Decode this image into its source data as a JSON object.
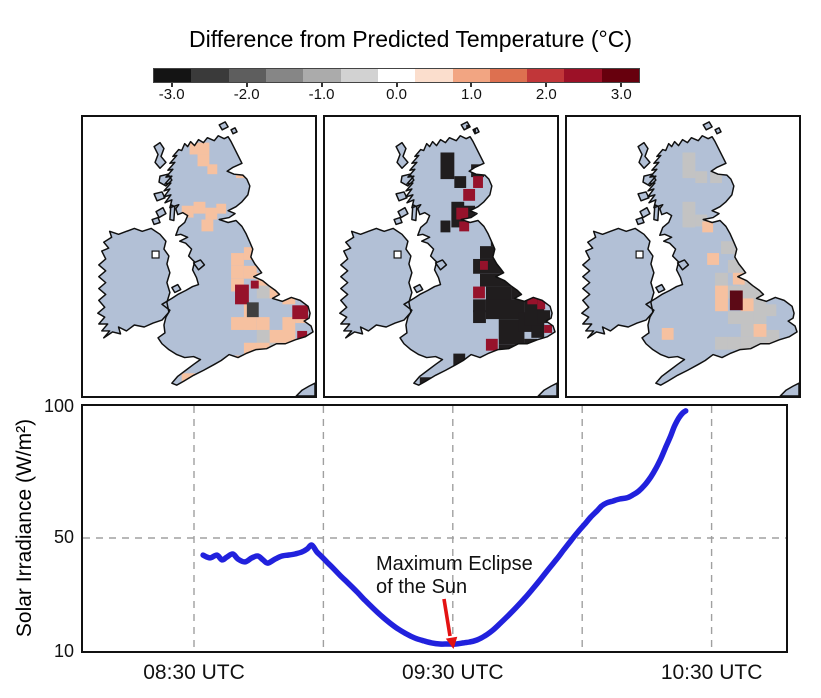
{
  "title": "Difference from Predicted Temperature (°C)",
  "colorbar": {
    "tick_labels": [
      "-3.0",
      "-2.0",
      "-1.0",
      "0.0",
      "1.0",
      "2.0",
      "3.0"
    ],
    "segment_colors": [
      "#141414",
      "#3a3a3a",
      "#5e5e5e",
      "#868686",
      "#ababab",
      "#d2d2d2",
      "#ffffff",
      "#fbdecd",
      "#f2a582",
      "#dd7050",
      "#c13639",
      "#9c1127",
      "#67000d"
    ]
  },
  "maps": {
    "land_color": "#b2c0d6",
    "sea_color": "#ffffff",
    "cell_colors": {
      "peach": "#f6c1a0",
      "gray": "#c3c3c3",
      "darkgray": "#3f3f3f",
      "black": "#201d1e",
      "red": "#96122b",
      "darkred": "#5c0a16"
    },
    "panels": [
      {
        "name": "before-eclipse",
        "cells": [
          [
            108,
            26,
            20,
            12,
            "peach"
          ],
          [
            116,
            38,
            12,
            12,
            "peach"
          ],
          [
            126,
            48,
            10,
            10,
            "peach"
          ],
          [
            155,
            52,
            12,
            10,
            "peach"
          ],
          [
            100,
            90,
            12,
            12,
            "peach"
          ],
          [
            112,
            86,
            12,
            12,
            "peach"
          ],
          [
            124,
            92,
            12,
            12,
            "peach"
          ],
          [
            135,
            88,
            10,
            10,
            "peach"
          ],
          [
            120,
            104,
            12,
            12,
            "peach"
          ],
          [
            150,
            138,
            13,
            13,
            "peach"
          ],
          [
            163,
            132,
            13,
            13,
            "peach"
          ],
          [
            150,
            151,
            13,
            13,
            "peach"
          ],
          [
            176,
            138,
            13,
            13,
            "peach"
          ],
          [
            163,
            151,
            13,
            13,
            "peach"
          ],
          [
            189,
            145,
            13,
            13,
            "peach"
          ],
          [
            176,
            158,
            13,
            13,
            "peach"
          ],
          [
            189,
            158,
            13,
            13,
            "peach"
          ],
          [
            150,
            164,
            13,
            13,
            "peach"
          ],
          [
            202,
            164,
            13,
            13,
            "peach"
          ],
          [
            215,
            171,
            13,
            13,
            "peach"
          ],
          [
            202,
            177,
            13,
            13,
            "peach"
          ],
          [
            189,
            171,
            13,
            13,
            "peach"
          ],
          [
            163,
            190,
            13,
            13,
            "peach"
          ],
          [
            150,
            203,
            26,
            13,
            "peach"
          ],
          [
            176,
            203,
            13,
            13,
            "peach"
          ],
          [
            202,
            203,
            13,
            26,
            "peach"
          ],
          [
            215,
            196,
            13,
            13,
            "peach"
          ],
          [
            189,
            216,
            26,
            13,
            "peach"
          ],
          [
            163,
            229,
            26,
            13,
            "peach"
          ],
          [
            150,
            242,
            13,
            13,
            "peach"
          ],
          [
            189,
            242,
            13,
            13,
            "peach"
          ],
          [
            100,
            260,
            14,
            10,
            "peach"
          ],
          [
            215,
            229,
            10,
            10,
            "peach"
          ],
          [
            163,
            203,
            13,
            13,
            "gray"
          ],
          [
            176,
            216,
            13,
            26,
            "gray"
          ],
          [
            189,
            229,
            13,
            13,
            "gray"
          ],
          [
            176,
            171,
            13,
            13,
            "gray"
          ],
          [
            166,
            188,
            12,
            15,
            "darkgray"
          ],
          [
            154,
            170,
            14,
            20,
            "red"
          ],
          [
            170,
            166,
            8,
            8,
            "red"
          ],
          [
            212,
            191,
            16,
            14,
            "red"
          ],
          [
            217,
            217,
            10,
            13,
            "red"
          ],
          [
            202,
            230,
            6,
            6,
            "red"
          ]
        ]
      },
      {
        "name": "during-eclipse",
        "cells": [
          [
            117,
            36,
            14,
            27,
            "black"
          ],
          [
            148,
            48,
            13,
            13,
            "black"
          ],
          [
            131,
            60,
            12,
            12,
            "black"
          ],
          [
            128,
            86,
            13,
            26,
            "black"
          ],
          [
            117,
            105,
            10,
            12,
            "black"
          ],
          [
            140,
            90,
            12,
            12,
            "black"
          ],
          [
            143,
            8,
            10,
            8,
            "black"
          ],
          [
            168,
            116,
            13,
            15,
            "black"
          ],
          [
            157,
            131,
            26,
            13,
            "black"
          ],
          [
            150,
            144,
            39,
            15,
            "black"
          ],
          [
            189,
            146,
            13,
            13,
            "black"
          ],
          [
            157,
            159,
            45,
            13,
            "black"
          ],
          [
            163,
            172,
            26,
            26,
            "black"
          ],
          [
            189,
            172,
            13,
            13,
            "black"
          ],
          [
            196,
            166,
            13,
            13,
            "black"
          ],
          [
            163,
            185,
            39,
            20,
            "black"
          ],
          [
            150,
            185,
            13,
            13,
            "black"
          ],
          [
            150,
            196,
            13,
            13,
            "black"
          ],
          [
            176,
            205,
            26,
            26,
            "black"
          ],
          [
            196,
            198,
            26,
            20,
            "black"
          ],
          [
            202,
            185,
            20,
            26,
            "black"
          ],
          [
            215,
            196,
            13,
            13,
            "black"
          ],
          [
            209,
            211,
            13,
            13,
            "black"
          ],
          [
            202,
            225,
            13,
            13,
            "black"
          ],
          [
            176,
            231,
            26,
            13,
            "black"
          ],
          [
            189,
            244,
            26,
            10,
            "black"
          ],
          [
            196,
            238,
            16,
            14,
            "black"
          ],
          [
            130,
            240,
            12,
            12,
            "black"
          ],
          [
            96,
            264,
            12,
            10,
            "black"
          ],
          [
            120,
            258,
            12,
            10,
            "black"
          ],
          [
            150,
            60,
            10,
            12,
            "red"
          ],
          [
            140,
            73,
            12,
            12,
            "red"
          ],
          [
            133,
            92,
            12,
            12,
            "red"
          ],
          [
            136,
            106,
            10,
            10,
            "red"
          ],
          [
            157,
            146,
            8,
            9,
            "red"
          ],
          [
            150,
            172,
            12,
            12,
            "red"
          ],
          [
            205,
            178,
            10,
            12,
            "red"
          ],
          [
            215,
            185,
            8,
            10,
            "red"
          ],
          [
            163,
            225,
            12,
            12,
            "red"
          ],
          [
            176,
            238,
            12,
            12,
            "red"
          ],
          [
            196,
            250,
            10,
            8,
            "red"
          ],
          [
            222,
            211,
            8,
            8,
            "red"
          ]
        ]
      },
      {
        "name": "after-eclipse",
        "cells": [
          [
            117,
            36,
            13,
            26,
            "gray"
          ],
          [
            130,
            55,
            12,
            12,
            "gray"
          ],
          [
            145,
            55,
            12,
            12,
            "gray"
          ],
          [
            117,
            86,
            13,
            26,
            "gray"
          ],
          [
            130,
            99,
            12,
            12,
            "gray"
          ],
          [
            156,
            126,
            13,
            13,
            "gray"
          ],
          [
            169,
            132,
            13,
            13,
            "gray"
          ],
          [
            163,
            145,
            26,
            13,
            "gray"
          ],
          [
            150,
            158,
            13,
            13,
            "gray"
          ],
          [
            176,
            158,
            26,
            26,
            "gray"
          ],
          [
            163,
            171,
            13,
            13,
            "gray"
          ],
          [
            189,
            184,
            13,
            26,
            "gray"
          ],
          [
            163,
            197,
            26,
            13,
            "gray"
          ],
          [
            176,
            210,
            26,
            13,
            "gray"
          ],
          [
            150,
            223,
            13,
            13,
            "gray"
          ],
          [
            176,
            223,
            26,
            13,
            "gray"
          ],
          [
            202,
            216,
            13,
            13,
            "gray"
          ],
          [
            189,
            236,
            26,
            13,
            "gray"
          ],
          [
            176,
            249,
            13,
            10,
            "gray"
          ],
          [
            163,
            223,
            13,
            13,
            "gray"
          ],
          [
            202,
            190,
            10,
            12,
            "gray"
          ],
          [
            137,
            106,
            11,
            11,
            "peach"
          ],
          [
            142,
            138,
            12,
            12,
            "peach"
          ],
          [
            150,
            171,
            13,
            26,
            "peach"
          ],
          [
            176,
            184,
            13,
            13,
            "peach"
          ],
          [
            189,
            210,
            13,
            13,
            "peach"
          ],
          [
            202,
            229,
            13,
            13,
            "peach"
          ],
          [
            96,
            214,
            12,
            12,
            "peach"
          ],
          [
            168,
            158,
            12,
            12,
            "peach"
          ],
          [
            165,
            176,
            13,
            20,
            "darkred"
          ],
          [
            183,
            235,
            7,
            7,
            "red"
          ]
        ]
      }
    ]
  },
  "chart_data": {
    "type": "line",
    "ylabel": "Solar Irradiance (W/m²)",
    "ytick_labels": [
      "100",
      "50",
      "10"
    ],
    "ytick_values": [
      100,
      50,
      10
    ],
    "xtick_labels": [
      "08:30 UTC",
      "09:30 UTC",
      "10:30 UTC"
    ],
    "xtick_minutes": [
      30,
      90,
      150
    ],
    "x_gridline_minutes": [
      30,
      60,
      90,
      120,
      150
    ],
    "y_gridline_value": 50,
    "annotation": {
      "line1": "Maximum Eclipse",
      "line2": "of the Sun"
    },
    "series": [
      {
        "name": "solar-irradiance",
        "color": "#2121dd",
        "points": [
          [
            32.1,
            44
          ],
          [
            33.7,
            43
          ],
          [
            35.3,
            44
          ],
          [
            36.5,
            42.3
          ],
          [
            37.6,
            43.3
          ],
          [
            39,
            44.4
          ],
          [
            40.2,
            42.6
          ],
          [
            41.8,
            41.6
          ],
          [
            43.4,
            43
          ],
          [
            44.8,
            43.7
          ],
          [
            46,
            42.3
          ],
          [
            47.1,
            41.2
          ],
          [
            48.8,
            42.6
          ],
          [
            50.4,
            43.7
          ],
          [
            51.8,
            44
          ],
          [
            53.4,
            44.4
          ],
          [
            55,
            45.1
          ],
          [
            56.2,
            46.1
          ],
          [
            57.3,
            47.5
          ],
          [
            58.5,
            45.1
          ],
          [
            59.7,
            43.3
          ],
          [
            60.8,
            41.6
          ],
          [
            62.2,
            39.5
          ],
          [
            63.8,
            37
          ],
          [
            65.7,
            34.2
          ],
          [
            67.8,
            31.1
          ],
          [
            69.6,
            28.2
          ],
          [
            71.5,
            25.4
          ],
          [
            73.5,
            22.6
          ],
          [
            75.4,
            20.2
          ],
          [
            77.3,
            18.1
          ],
          [
            79.3,
            16.3
          ],
          [
            81.2,
            14.9
          ],
          [
            83.3,
            13.9
          ],
          [
            85.1,
            13.2
          ],
          [
            87,
            12.8
          ],
          [
            88.8,
            12.8
          ],
          [
            90.7,
            12.8
          ],
          [
            92.5,
            13.2
          ],
          [
            93.9,
            13.5
          ],
          [
            95.6,
            14.2
          ],
          [
            97.4,
            15.6
          ],
          [
            99.3,
            17.7
          ],
          [
            101.1,
            20.2
          ],
          [
            103,
            23
          ],
          [
            104.8,
            25.8
          ],
          [
            106.7,
            28.9
          ],
          [
            108.5,
            32.1
          ],
          [
            110.4,
            35.6
          ],
          [
            112.2,
            39.1
          ],
          [
            114.1,
            42.6
          ],
          [
            115.7,
            45.8
          ],
          [
            117.3,
            48.9
          ],
          [
            119,
            52.3
          ],
          [
            120.6,
            55.3
          ],
          [
            122,
            58
          ],
          [
            123.4,
            60.3
          ],
          [
            124.5,
            62.2
          ],
          [
            125.7,
            63.4
          ],
          [
            127.1,
            64.1
          ],
          [
            128.7,
            64.9
          ],
          [
            130.3,
            65.3
          ],
          [
            131.7,
            66.4
          ],
          [
            133.1,
            67.9
          ],
          [
            134.5,
            70.2
          ],
          [
            135.9,
            73.3
          ],
          [
            137,
            76.3
          ],
          [
            138.2,
            80.2
          ],
          [
            139.3,
            84.4
          ],
          [
            140.5,
            88.9
          ],
          [
            141.4,
            92.7
          ],
          [
            142.4,
            95.8
          ],
          [
            143.3,
            97.7
          ],
          [
            144,
            98.5
          ]
        ]
      }
    ],
    "arrow_color": "#e31212"
  }
}
